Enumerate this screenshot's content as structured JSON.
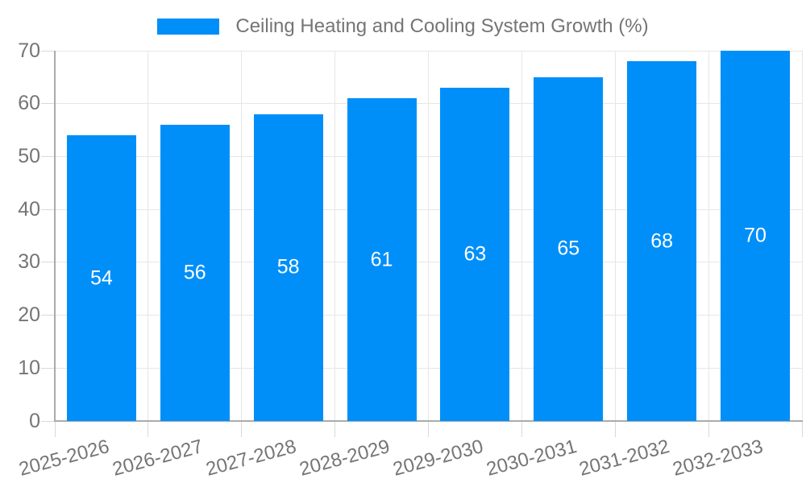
{
  "chart_data": {
    "type": "bar",
    "title": "Ceiling Heating and Cooling System Growth (%)",
    "legend": {
      "label": "Ceiling Heating and Cooling System Growth (%)",
      "position": "top",
      "marker": "rectangle"
    },
    "categories": [
      "2025-2026",
      "2026-2027",
      "2027-2028",
      "2028-2029",
      "2029-2030",
      "2030-2031",
      "2031-2032",
      "2032-2033"
    ],
    "values": [
      54,
      56,
      58,
      61,
      63,
      65,
      68,
      70
    ],
    "xlabel": "",
    "ylabel": "",
    "ylim": [
      0,
      70
    ],
    "yticks": [
      0,
      10,
      20,
      30,
      40,
      50,
      60,
      70
    ],
    "grid": true,
    "bar_value_labels_visible": true,
    "x_label_rotation_deg": -15,
    "colors": {
      "bar": "#008FF8",
      "value_label": "#FFFFFF",
      "axis_text": "#757575",
      "legend_text": "#757575",
      "gridline": "#E6E6E6",
      "tick": "#D9D9D9",
      "axis_line": "#ABABAB",
      "background": "#FFFFFF"
    }
  }
}
